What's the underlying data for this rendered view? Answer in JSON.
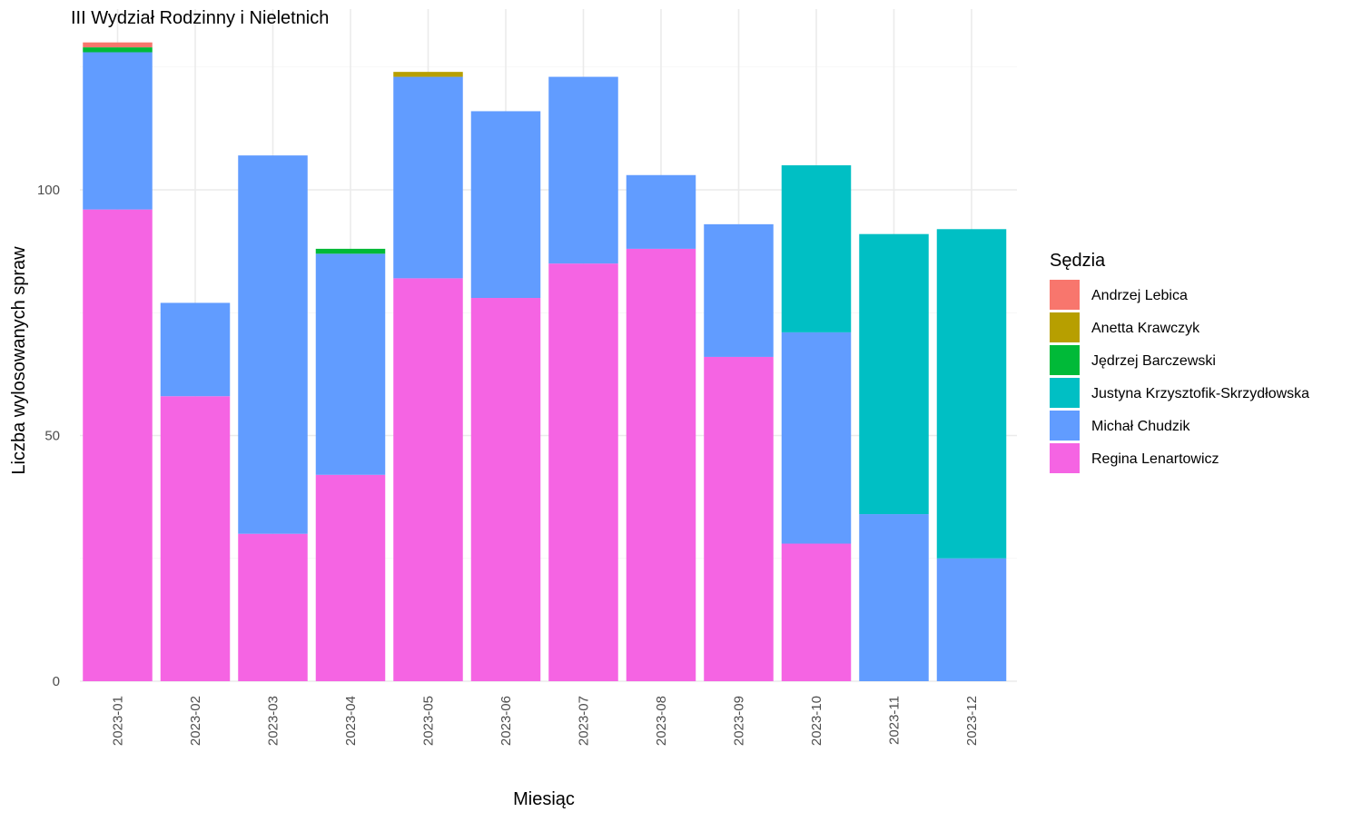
{
  "chart_data": {
    "type": "bar",
    "stacked": true,
    "title": "III Wydział Rodzinny i Nieletnich",
    "xlabel": "Miesiąc",
    "ylabel": "Liczba wylosowanych spraw",
    "ylim": [
      0,
      133
    ],
    "yticks": [
      0,
      50,
      100
    ],
    "grid": true,
    "legend": {
      "title": "Sędzia",
      "placement": "right"
    },
    "categories": [
      "2023-01",
      "2023-02",
      "2023-03",
      "2023-04",
      "2023-05",
      "2023-06",
      "2023-07",
      "2023-08",
      "2023-09",
      "2023-10",
      "2023-11",
      "2023-12"
    ],
    "series": [
      {
        "name": "Regina Lenartowicz",
        "color": "#F564E3",
        "values": [
          96,
          58,
          30,
          42,
          82,
          78,
          85,
          88,
          66,
          28,
          0,
          0
        ]
      },
      {
        "name": "Michał Chudzik",
        "color": "#619CFF",
        "values": [
          32,
          19,
          77,
          45,
          41,
          38,
          38,
          15,
          27,
          43,
          34,
          25
        ]
      },
      {
        "name": "Justyna Krzysztofik-Skrzydłowska",
        "color": "#00BFC4",
        "values": [
          0,
          0,
          0,
          0,
          0,
          0,
          0,
          0,
          0,
          34,
          57,
          67
        ]
      },
      {
        "name": "Jędrzej Barczewski",
        "color": "#00BA38",
        "values": [
          1,
          0,
          0,
          1,
          0,
          0,
          0,
          0,
          0,
          0,
          0,
          0
        ]
      },
      {
        "name": "Anetta Krawczyk",
        "color": "#B79F00",
        "values": [
          0,
          0,
          0,
          0,
          1,
          0,
          0,
          0,
          0,
          0,
          0,
          0
        ]
      },
      {
        "name": "Andrzej Lebica",
        "color": "#F8766D",
        "values": [
          1,
          0,
          0,
          0,
          0,
          0,
          0,
          0,
          0,
          0,
          0,
          0
        ]
      }
    ],
    "legend_order": [
      "Andrzej Lebica",
      "Anetta Krawczyk",
      "Jędrzej Barczewski",
      "Justyna Krzysztofik-Skrzydłowska",
      "Michał Chudzik",
      "Regina Lenartowicz"
    ]
  }
}
